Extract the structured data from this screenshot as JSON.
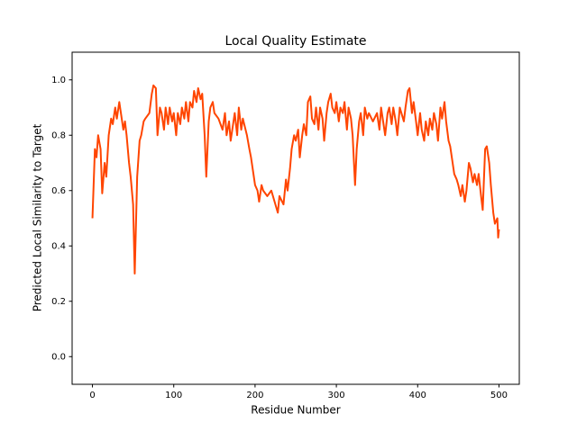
{
  "chart_data": {
    "type": "line",
    "title": "Local Quality Estimate",
    "x_label": "Residue Number",
    "y_label": "Predicted Local Similarity to Target",
    "color": "#ff4500",
    "xlim": [
      -25,
      525
    ],
    "ylim": [
      -0.1,
      1.1
    ],
    "xticks": [
      0,
      100,
      200,
      300,
      400,
      500
    ],
    "yticks": [
      {
        "value": 0,
        "label": "0.0"
      },
      0.2,
      0.4,
      0.6,
      0.8,
      {
        "value": 1,
        "label": "1.0"
      }
    ],
    "x": [
      0,
      3,
      5,
      7,
      10,
      12,
      15,
      17,
      20,
      23,
      25,
      28,
      30,
      33,
      35,
      38,
      40,
      42,
      45,
      47,
      50,
      52,
      55,
      58,
      60,
      63,
      65,
      70,
      73,
      75,
      78,
      80,
      83,
      85,
      88,
      90,
      93,
      95,
      98,
      100,
      103,
      105,
      108,
      110,
      113,
      115,
      118,
      120,
      123,
      125,
      128,
      130,
      133,
      135,
      138,
      140,
      143,
      145,
      148,
      150,
      155,
      160,
      163,
      165,
      168,
      170,
      175,
      178,
      180,
      183,
      185,
      190,
      193,
      195,
      198,
      200,
      203,
      205,
      208,
      210,
      215,
      220,
      225,
      228,
      230,
      235,
      238,
      240,
      243,
      245,
      248,
      250,
      253,
      255,
      258,
      260,
      263,
      265,
      268,
      270,
      273,
      275,
      278,
      280,
      283,
      285,
      288,
      290,
      293,
      295,
      298,
      300,
      303,
      305,
      308,
      310,
      313,
      315,
      318,
      320,
      323,
      325,
      328,
      330,
      333,
      335,
      338,
      340,
      345,
      350,
      353,
      355,
      358,
      360,
      363,
      365,
      368,
      370,
      373,
      375,
      378,
      380,
      383,
      385,
      388,
      390,
      393,
      395,
      398,
      400,
      403,
      405,
      408,
      410,
      413,
      415,
      418,
      420,
      423,
      425,
      428,
      430,
      433,
      435,
      438,
      440,
      443,
      445,
      448,
      450,
      453,
      455,
      458,
      460,
      463,
      465,
      468,
      470,
      473,
      475,
      478,
      480,
      483,
      485,
      488,
      490,
      493,
      495,
      498,
      499,
      500
    ],
    "values": [
      0.5,
      0.75,
      0.72,
      0.8,
      0.75,
      0.59,
      0.7,
      0.65,
      0.8,
      0.86,
      0.84,
      0.9,
      0.86,
      0.92,
      0.88,
      0.82,
      0.85,
      0.8,
      0.7,
      0.65,
      0.55,
      0.3,
      0.65,
      0.78,
      0.8,
      0.85,
      0.86,
      0.88,
      0.95,
      0.98,
      0.97,
      0.8,
      0.9,
      0.88,
      0.82,
      0.9,
      0.84,
      0.9,
      0.85,
      0.88,
      0.8,
      0.88,
      0.84,
      0.9,
      0.86,
      0.92,
      0.85,
      0.92,
      0.9,
      0.96,
      0.92,
      0.97,
      0.93,
      0.95,
      0.8,
      0.65,
      0.85,
      0.9,
      0.92,
      0.88,
      0.86,
      0.82,
      0.88,
      0.8,
      0.85,
      0.78,
      0.88,
      0.8,
      0.9,
      0.82,
      0.86,
      0.8,
      0.75,
      0.72,
      0.66,
      0.62,
      0.6,
      0.56,
      0.62,
      0.6,
      0.58,
      0.6,
      0.55,
      0.52,
      0.58,
      0.55,
      0.64,
      0.6,
      0.68,
      0.75,
      0.8,
      0.78,
      0.82,
      0.72,
      0.8,
      0.84,
      0.8,
      0.92,
      0.94,
      0.86,
      0.84,
      0.9,
      0.82,
      0.9,
      0.86,
      0.78,
      0.88,
      0.92,
      0.95,
      0.9,
      0.88,
      0.92,
      0.85,
      0.9,
      0.88,
      0.92,
      0.82,
      0.9,
      0.86,
      0.8,
      0.62,
      0.75,
      0.85,
      0.88,
      0.8,
      0.9,
      0.86,
      0.88,
      0.85,
      0.88,
      0.82,
      0.9,
      0.84,
      0.8,
      0.88,
      0.9,
      0.84,
      0.9,
      0.85,
      0.8,
      0.9,
      0.88,
      0.85,
      0.9,
      0.96,
      0.97,
      0.88,
      0.92,
      0.85,
      0.8,
      0.88,
      0.82,
      0.78,
      0.85,
      0.8,
      0.86,
      0.82,
      0.88,
      0.84,
      0.78,
      0.9,
      0.86,
      0.92,
      0.85,
      0.78,
      0.76,
      0.7,
      0.66,
      0.64,
      0.62,
      0.58,
      0.62,
      0.56,
      0.6,
      0.7,
      0.68,
      0.63,
      0.66,
      0.62,
      0.66,
      0.58,
      0.53,
      0.75,
      0.76,
      0.7,
      0.62,
      0.52,
      0.48,
      0.5,
      0.43,
      0.46
    ]
  }
}
